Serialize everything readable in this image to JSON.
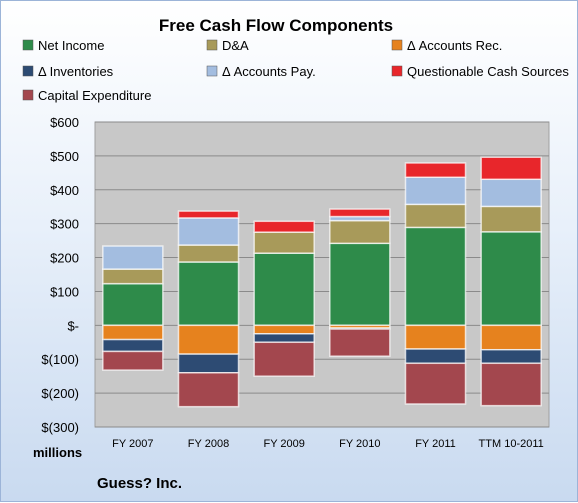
{
  "chart_data": {
    "type": "bar",
    "stacked": true,
    "title": "Free Cash Flow Components",
    "company": "Guess? Inc.",
    "unit_label": "millions",
    "categories": [
      "FY 2007",
      "FY 2008",
      "FY 2009",
      "FY 2010",
      "FY 2011",
      "TTM 10-2011"
    ],
    "ylim": [
      -300,
      600
    ],
    "yticks": [
      600,
      500,
      400,
      300,
      200,
      100,
      0,
      -100,
      -200,
      -300
    ],
    "ytick_labels": [
      "$600",
      "$500",
      "$400",
      "$300",
      "$200",
      "$100",
      "$-",
      "$(100)",
      "$(200)",
      "$(300)"
    ],
    "grid": true,
    "legend_position": "top",
    "series": [
      {
        "name": "Net Income",
        "color": "#2e8b4a",
        "values": [
          123,
          187,
          213,
          242,
          289,
          276
        ]
      },
      {
        "name": "D&A",
        "color": "#a89a5a",
        "values": [
          43,
          50,
          62,
          67,
          68,
          75
        ]
      },
      {
        "name": "Δ Accounts Rec.",
        "color": "#e6821e",
        "values": [
          -42,
          -85,
          -25,
          -8,
          -70,
          -72
        ]
      },
      {
        "name": "Δ Inventories",
        "color": "#2d4b73",
        "values": [
          -35,
          -55,
          -25,
          -3,
          -42,
          -40
        ]
      },
      {
        "name": "Δ Accounts Pay.",
        "color": "#a3bde0",
        "values": [
          68,
          80,
          0,
          12,
          80,
          80
        ]
      },
      {
        "name": "Questionable Cash Sources",
        "color": "#e8262b",
        "values": [
          0,
          20,
          32,
          22,
          42,
          65
        ]
      },
      {
        "name": "Capital Expenditure",
        "color": "#a3474e",
        "values": [
          -55,
          -100,
          -100,
          -80,
          -120,
          -125
        ]
      }
    ]
  }
}
